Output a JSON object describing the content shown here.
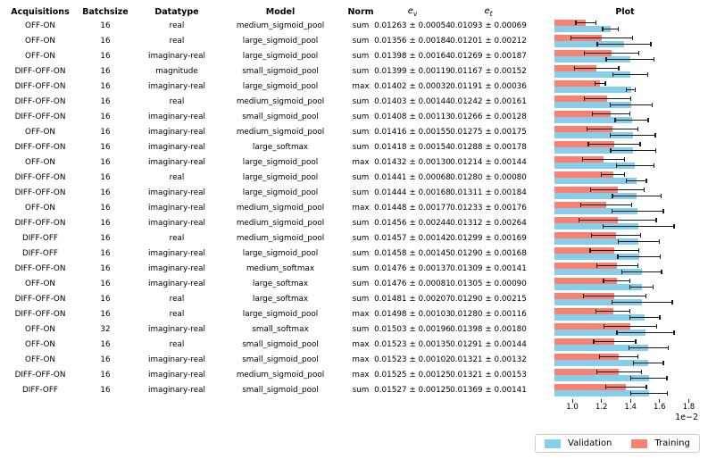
{
  "header": {
    "acquisitions": "Acquisitions",
    "batchsize": "Batchsize",
    "datatype": "Datatype",
    "model": "Model",
    "norm": "Norm",
    "ev_base": "e",
    "ev_sub": "v",
    "et_base": "e",
    "et_sub": "t",
    "plot": "Plot"
  },
  "legend": {
    "validation": "Validation",
    "training": "Training"
  },
  "colors": {
    "validation": "#87CEEB",
    "training": "#FA8072",
    "errorbar": "#1a1a1a"
  },
  "axis": {
    "tick_labels": [
      "1.0",
      "1.2",
      "1.4",
      "1.6",
      "1.8"
    ],
    "tick_values": [
      1.0,
      1.2,
      1.4,
      1.6,
      1.8
    ],
    "offset_label": "1e−2"
  },
  "chart_data": {
    "type": "bar",
    "orientation": "horizontal",
    "title": "Plot",
    "units": "1e-2",
    "xlim": [
      0.877,
      1.845
    ],
    "x_ticks": [
      1.0,
      1.2,
      1.4,
      1.6,
      1.8
    ],
    "grid": false,
    "legend_position": "lower right",
    "categories": [
      1,
      2,
      3,
      4,
      5,
      6,
      7,
      8,
      9,
      10,
      11,
      12,
      13,
      14,
      15,
      16,
      17,
      18,
      19,
      20,
      21,
      22,
      23,
      24,
      25
    ],
    "series": [
      {
        "name": "Validation",
        "color": "#87CEEB",
        "values": [
          1.263,
          1.356,
          1.398,
          1.399,
          1.402,
          1.403,
          1.408,
          1.416,
          1.418,
          1.432,
          1.441,
          1.444,
          1.448,
          1.456,
          1.457,
          1.458,
          1.476,
          1.476,
          1.481,
          1.498,
          1.503,
          1.523,
          1.523,
          1.525,
          1.527
        ],
        "errors": [
          0.054,
          0.184,
          0.164,
          0.119,
          0.032,
          0.144,
          0.113,
          0.155,
          0.154,
          0.13,
          0.068,
          0.168,
          0.177,
          0.244,
          0.142,
          0.145,
          0.137,
          0.081,
          0.207,
          0.103,
          0.196,
          0.135,
          0.102,
          0.125,
          0.125
        ]
      },
      {
        "name": "Training",
        "color": "#FA8072",
        "values": [
          1.093,
          1.201,
          1.269,
          1.167,
          1.191,
          1.242,
          1.266,
          1.275,
          1.288,
          1.214,
          1.28,
          1.311,
          1.233,
          1.312,
          1.299,
          1.29,
          1.309,
          1.305,
          1.29,
          1.28,
          1.398,
          1.291,
          1.321,
          1.321,
          1.369
        ],
        "errors": [
          0.069,
          0.212,
          0.187,
          0.152,
          0.036,
          0.161,
          0.128,
          0.175,
          0.178,
          0.144,
          0.08,
          0.184,
          0.176,
          0.264,
          0.169,
          0.168,
          0.141,
          0.09,
          0.215,
          0.116,
          0.18,
          0.144,
          0.132,
          0.153,
          0.141
        ]
      }
    ]
  },
  "rows": [
    {
      "acquisitions": "OFF-ON",
      "batchsize": "16",
      "datatype": "real",
      "model": "medium_sigmoid_pool",
      "norm": "sum",
      "ev": "0.01263 ± 0.00054",
      "et": "0.01093 ± 0.00069"
    },
    {
      "acquisitions": "OFF-ON",
      "batchsize": "16",
      "datatype": "real",
      "model": "large_sigmoid_pool",
      "norm": "sum",
      "ev": "0.01356 ± 0.00184",
      "et": "0.01201 ± 0.00212"
    },
    {
      "acquisitions": "OFF-ON",
      "batchsize": "16",
      "datatype": "imaginary-real",
      "model": "large_sigmoid_pool",
      "norm": "sum",
      "ev": "0.01398 ± 0.00164",
      "et": "0.01269 ± 0.00187"
    },
    {
      "acquisitions": "DIFF-OFF-ON",
      "batchsize": "16",
      "datatype": "magnitude",
      "model": "small_sigmoid_pool",
      "norm": "sum",
      "ev": "0.01399 ± 0.00119",
      "et": "0.01167 ± 0.00152"
    },
    {
      "acquisitions": "DIFF-OFF-ON",
      "batchsize": "16",
      "datatype": "imaginary-real",
      "model": "large_sigmoid_pool",
      "norm": "max",
      "ev": "0.01402 ± 0.00032",
      "et": "0.01191 ± 0.00036"
    },
    {
      "acquisitions": "DIFF-OFF-ON",
      "batchsize": "16",
      "datatype": "real",
      "model": "medium_sigmoid_pool",
      "norm": "sum",
      "ev": "0.01403 ± 0.00144",
      "et": "0.01242 ± 0.00161"
    },
    {
      "acquisitions": "DIFF-OFF-ON",
      "batchsize": "16",
      "datatype": "imaginary-real",
      "model": "small_sigmoid_pool",
      "norm": "sum",
      "ev": "0.01408 ± 0.00113",
      "et": "0.01266 ± 0.00128"
    },
    {
      "acquisitions": "OFF-ON",
      "batchsize": "16",
      "datatype": "imaginary-real",
      "model": "medium_sigmoid_pool",
      "norm": "sum",
      "ev": "0.01416 ± 0.00155",
      "et": "0.01275 ± 0.00175"
    },
    {
      "acquisitions": "DIFF-OFF-ON",
      "batchsize": "16",
      "datatype": "imaginary-real",
      "model": "large_softmax",
      "norm": "sum",
      "ev": "0.01418 ± 0.00154",
      "et": "0.01288 ± 0.00178"
    },
    {
      "acquisitions": "OFF-ON",
      "batchsize": "16",
      "datatype": "imaginary-real",
      "model": "large_sigmoid_pool",
      "norm": "max",
      "ev": "0.01432 ± 0.00130",
      "et": "0.01214 ± 0.00144"
    },
    {
      "acquisitions": "DIFF-OFF-ON",
      "batchsize": "16",
      "datatype": "real",
      "model": "large_sigmoid_pool",
      "norm": "sum",
      "ev": "0.01441 ± 0.00068",
      "et": "0.01280 ± 0.00080"
    },
    {
      "acquisitions": "DIFF-OFF-ON",
      "batchsize": "16",
      "datatype": "imaginary-real",
      "model": "large_sigmoid_pool",
      "norm": "sum",
      "ev": "0.01444 ± 0.00168",
      "et": "0.01311 ± 0.00184"
    },
    {
      "acquisitions": "OFF-ON",
      "batchsize": "16",
      "datatype": "imaginary-real",
      "model": "medium_sigmoid_pool",
      "norm": "max",
      "ev": "0.01448 ± 0.00177",
      "et": "0.01233 ± 0.00176"
    },
    {
      "acquisitions": "DIFF-OFF-ON",
      "batchsize": "16",
      "datatype": "imaginary-real",
      "model": "medium_sigmoid_pool",
      "norm": "sum",
      "ev": "0.01456 ± 0.00244",
      "et": "0.01312 ± 0.00264"
    },
    {
      "acquisitions": "DIFF-OFF",
      "batchsize": "16",
      "datatype": "real",
      "model": "medium_sigmoid_pool",
      "norm": "sum",
      "ev": "0.01457 ± 0.00142",
      "et": "0.01299 ± 0.00169"
    },
    {
      "acquisitions": "DIFF-OFF",
      "batchsize": "16",
      "datatype": "imaginary-real",
      "model": "large_sigmoid_pool",
      "norm": "sum",
      "ev": "0.01458 ± 0.00145",
      "et": "0.01290 ± 0.00168"
    },
    {
      "acquisitions": "DIFF-OFF-ON",
      "batchsize": "16",
      "datatype": "imaginary-real",
      "model": "medium_softmax",
      "norm": "sum",
      "ev": "0.01476 ± 0.00137",
      "et": "0.01309 ± 0.00141"
    },
    {
      "acquisitions": "OFF-ON",
      "batchsize": "16",
      "datatype": "imaginary-real",
      "model": "large_softmax",
      "norm": "sum",
      "ev": "0.01476 ± 0.00081",
      "et": "0.01305 ± 0.00090"
    },
    {
      "acquisitions": "DIFF-OFF-ON",
      "batchsize": "16",
      "datatype": "real",
      "model": "large_softmax",
      "norm": "sum",
      "ev": "0.01481 ± 0.00207",
      "et": "0.01290 ± 0.00215"
    },
    {
      "acquisitions": "DIFF-OFF-ON",
      "batchsize": "16",
      "datatype": "real",
      "model": "large_sigmoid_pool",
      "norm": "max",
      "ev": "0.01498 ± 0.00103",
      "et": "0.01280 ± 0.00116"
    },
    {
      "acquisitions": "OFF-ON",
      "batchsize": "32",
      "datatype": "imaginary-real",
      "model": "small_softmax",
      "norm": "sum",
      "ev": "0.01503 ± 0.00196",
      "et": "0.01398 ± 0.00180"
    },
    {
      "acquisitions": "OFF-ON",
      "batchsize": "16",
      "datatype": "real",
      "model": "small_sigmoid_pool",
      "norm": "max",
      "ev": "0.01523 ± 0.00135",
      "et": "0.01291 ± 0.00144"
    },
    {
      "acquisitions": "OFF-ON",
      "batchsize": "16",
      "datatype": "imaginary-real",
      "model": "small_sigmoid_pool",
      "norm": "max",
      "ev": "0.01523 ± 0.00102",
      "et": "0.01321 ± 0.00132"
    },
    {
      "acquisitions": "DIFF-OFF-ON",
      "batchsize": "16",
      "datatype": "imaginary-real",
      "model": "medium_sigmoid_pool",
      "norm": "max",
      "ev": "0.01525 ± 0.00125",
      "et": "0.01321 ± 0.00153"
    },
    {
      "acquisitions": "DIFF-OFF",
      "batchsize": "16",
      "datatype": "imaginary-real",
      "model": "small_sigmoid_pool",
      "norm": "sum",
      "ev": "0.01527 ± 0.00125",
      "et": "0.01369 ± 0.00141"
    }
  ]
}
